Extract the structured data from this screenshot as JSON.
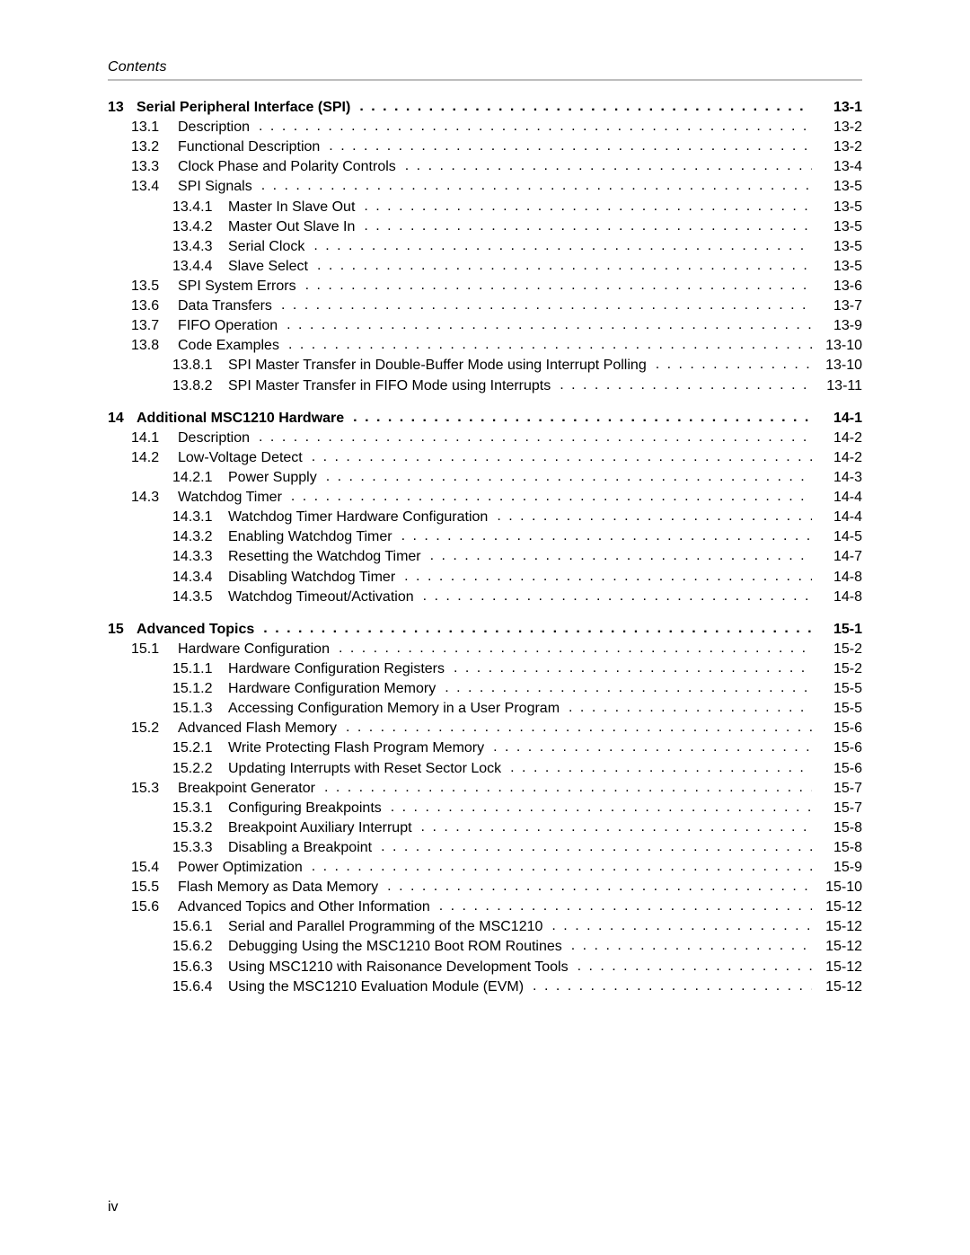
{
  "header": {
    "title": "Contents"
  },
  "footer": {
    "page_num": "iv"
  },
  "colors": {
    "text": "#000000",
    "rule": "#bdbdbd",
    "background": "#ffffff"
  },
  "typography": {
    "font_family": "Arial, Helvetica, sans-serif",
    "body_size_pt": 12,
    "header_style": "italic"
  },
  "toc": [
    {
      "num": "13",
      "title": "Serial Peripheral Interface (SPI)",
      "page": "13-1",
      "sections": [
        {
          "num": "13.1",
          "title": "Description",
          "page": "13-2"
        },
        {
          "num": "13.2",
          "title": "Functional Description",
          "page": "13-2"
        },
        {
          "num": "13.3",
          "title": "Clock Phase and Polarity Controls",
          "page": "13-4"
        },
        {
          "num": "13.4",
          "title": "SPI Signals",
          "page": "13-5",
          "subs": [
            {
              "num": "13.4.1",
              "title": "Master In Slave Out",
              "page": "13-5"
            },
            {
              "num": "13.4.2",
              "title": "Master Out Slave In",
              "page": "13-5"
            },
            {
              "num": "13.4.3",
              "title": "Serial Clock",
              "page": "13-5"
            },
            {
              "num": "13.4.4",
              "title": "Slave Select",
              "page": "13-5"
            }
          ]
        },
        {
          "num": "13.5",
          "title": "SPI System Errors",
          "page": "13-6"
        },
        {
          "num": "13.6",
          "title": "Data Transfers",
          "page": "13-7"
        },
        {
          "num": "13.7",
          "title": "FIFO Operation",
          "page": "13-9"
        },
        {
          "num": "13.8",
          "title": "Code Examples",
          "page": "13-10",
          "subs": [
            {
              "num": "13.8.1",
              "title": "SPI Master Transfer in Double-Buffer Mode using Interrupt Polling",
              "page": "13-10"
            },
            {
              "num": "13.8.2",
              "title": "SPI Master Transfer in FIFO Mode using Interrupts",
              "page": "13-11"
            }
          ]
        }
      ]
    },
    {
      "num": "14",
      "title": "Additional MSC1210 Hardware",
      "page": "14-1",
      "sections": [
        {
          "num": "14.1",
          "title": "Description",
          "page": "14-2"
        },
        {
          "num": "14.2",
          "title": "Low-Voltage Detect",
          "page": "14-2",
          "subs": [
            {
              "num": "14.2.1",
              "title": "Power Supply",
              "page": "14-3"
            }
          ]
        },
        {
          "num": "14.3",
          "title": "Watchdog Timer",
          "page": "14-4",
          "subs": [
            {
              "num": "14.3.1",
              "title": "Watchdog Timer Hardware Configuration",
              "page": "14-4"
            },
            {
              "num": "14.3.2",
              "title": "Enabling Watchdog Timer",
              "page": "14-5"
            },
            {
              "num": "14.3.3",
              "title": "Resetting the Watchdog Timer",
              "page": "14-7"
            },
            {
              "num": "14.3.4",
              "title": "Disabling Watchdog Timer",
              "page": "14-8"
            },
            {
              "num": "14.3.5",
              "title": "Watchdog Timeout/Activation",
              "page": "14-8"
            }
          ]
        }
      ]
    },
    {
      "num": "15",
      "title": "Advanced Topics",
      "page": "15-1",
      "sections": [
        {
          "num": "15.1",
          "title": "Hardware Configuration",
          "page": "15-2",
          "subs": [
            {
              "num": "15.1.1",
              "title": "Hardware Configuration Registers",
              "page": "15-2"
            },
            {
              "num": "15.1.2",
              "title": "Hardware Configuration Memory",
              "page": "15-5"
            },
            {
              "num": "15.1.3",
              "title": "Accessing Configuration Memory in a User Program",
              "page": "15-5"
            }
          ]
        },
        {
          "num": "15.2",
          "title": "Advanced Flash Memory",
          "page": "15-6",
          "subs": [
            {
              "num": "15.2.1",
              "title": "Write Protecting Flash Program Memory",
              "page": "15-6"
            },
            {
              "num": "15.2.2",
              "title": "Updating Interrupts with Reset Sector Lock",
              "page": "15-6"
            }
          ]
        },
        {
          "num": "15.3",
          "title": "Breakpoint Generator",
          "page": "15-7",
          "subs": [
            {
              "num": "15.3.1",
              "title": "Configuring Breakpoints",
              "page": "15-7"
            },
            {
              "num": "15.3.2",
              "title": "Breakpoint Auxiliary Interrupt",
              "page": "15-8"
            },
            {
              "num": "15.3.3",
              "title": "Disabling a Breakpoint",
              "page": "15-8"
            }
          ]
        },
        {
          "num": "15.4",
          "title": "Power Optimization",
          "page": "15-9"
        },
        {
          "num": "15.5",
          "title": "Flash Memory as Data Memory",
          "page": "15-10"
        },
        {
          "num": "15.6",
          "title": "Advanced Topics and Other Information",
          "page": "15-12",
          "subs": [
            {
              "num": "15.6.1",
              "title": "Serial and Parallel Programming of the MSC1210",
              "page": "15-12"
            },
            {
              "num": "15.6.2",
              "title": "Debugging Using the MSC1210 Boot ROM Routines",
              "page": "15-12"
            },
            {
              "num": "15.6.3",
              "title": "Using MSC1210 with Raisonance Development Tools",
              "page": "15-12"
            },
            {
              "num": "15.6.4",
              "title": "Using the MSC1210 Evaluation Module (EVM)",
              "page": "15-12"
            }
          ]
        }
      ]
    }
  ]
}
